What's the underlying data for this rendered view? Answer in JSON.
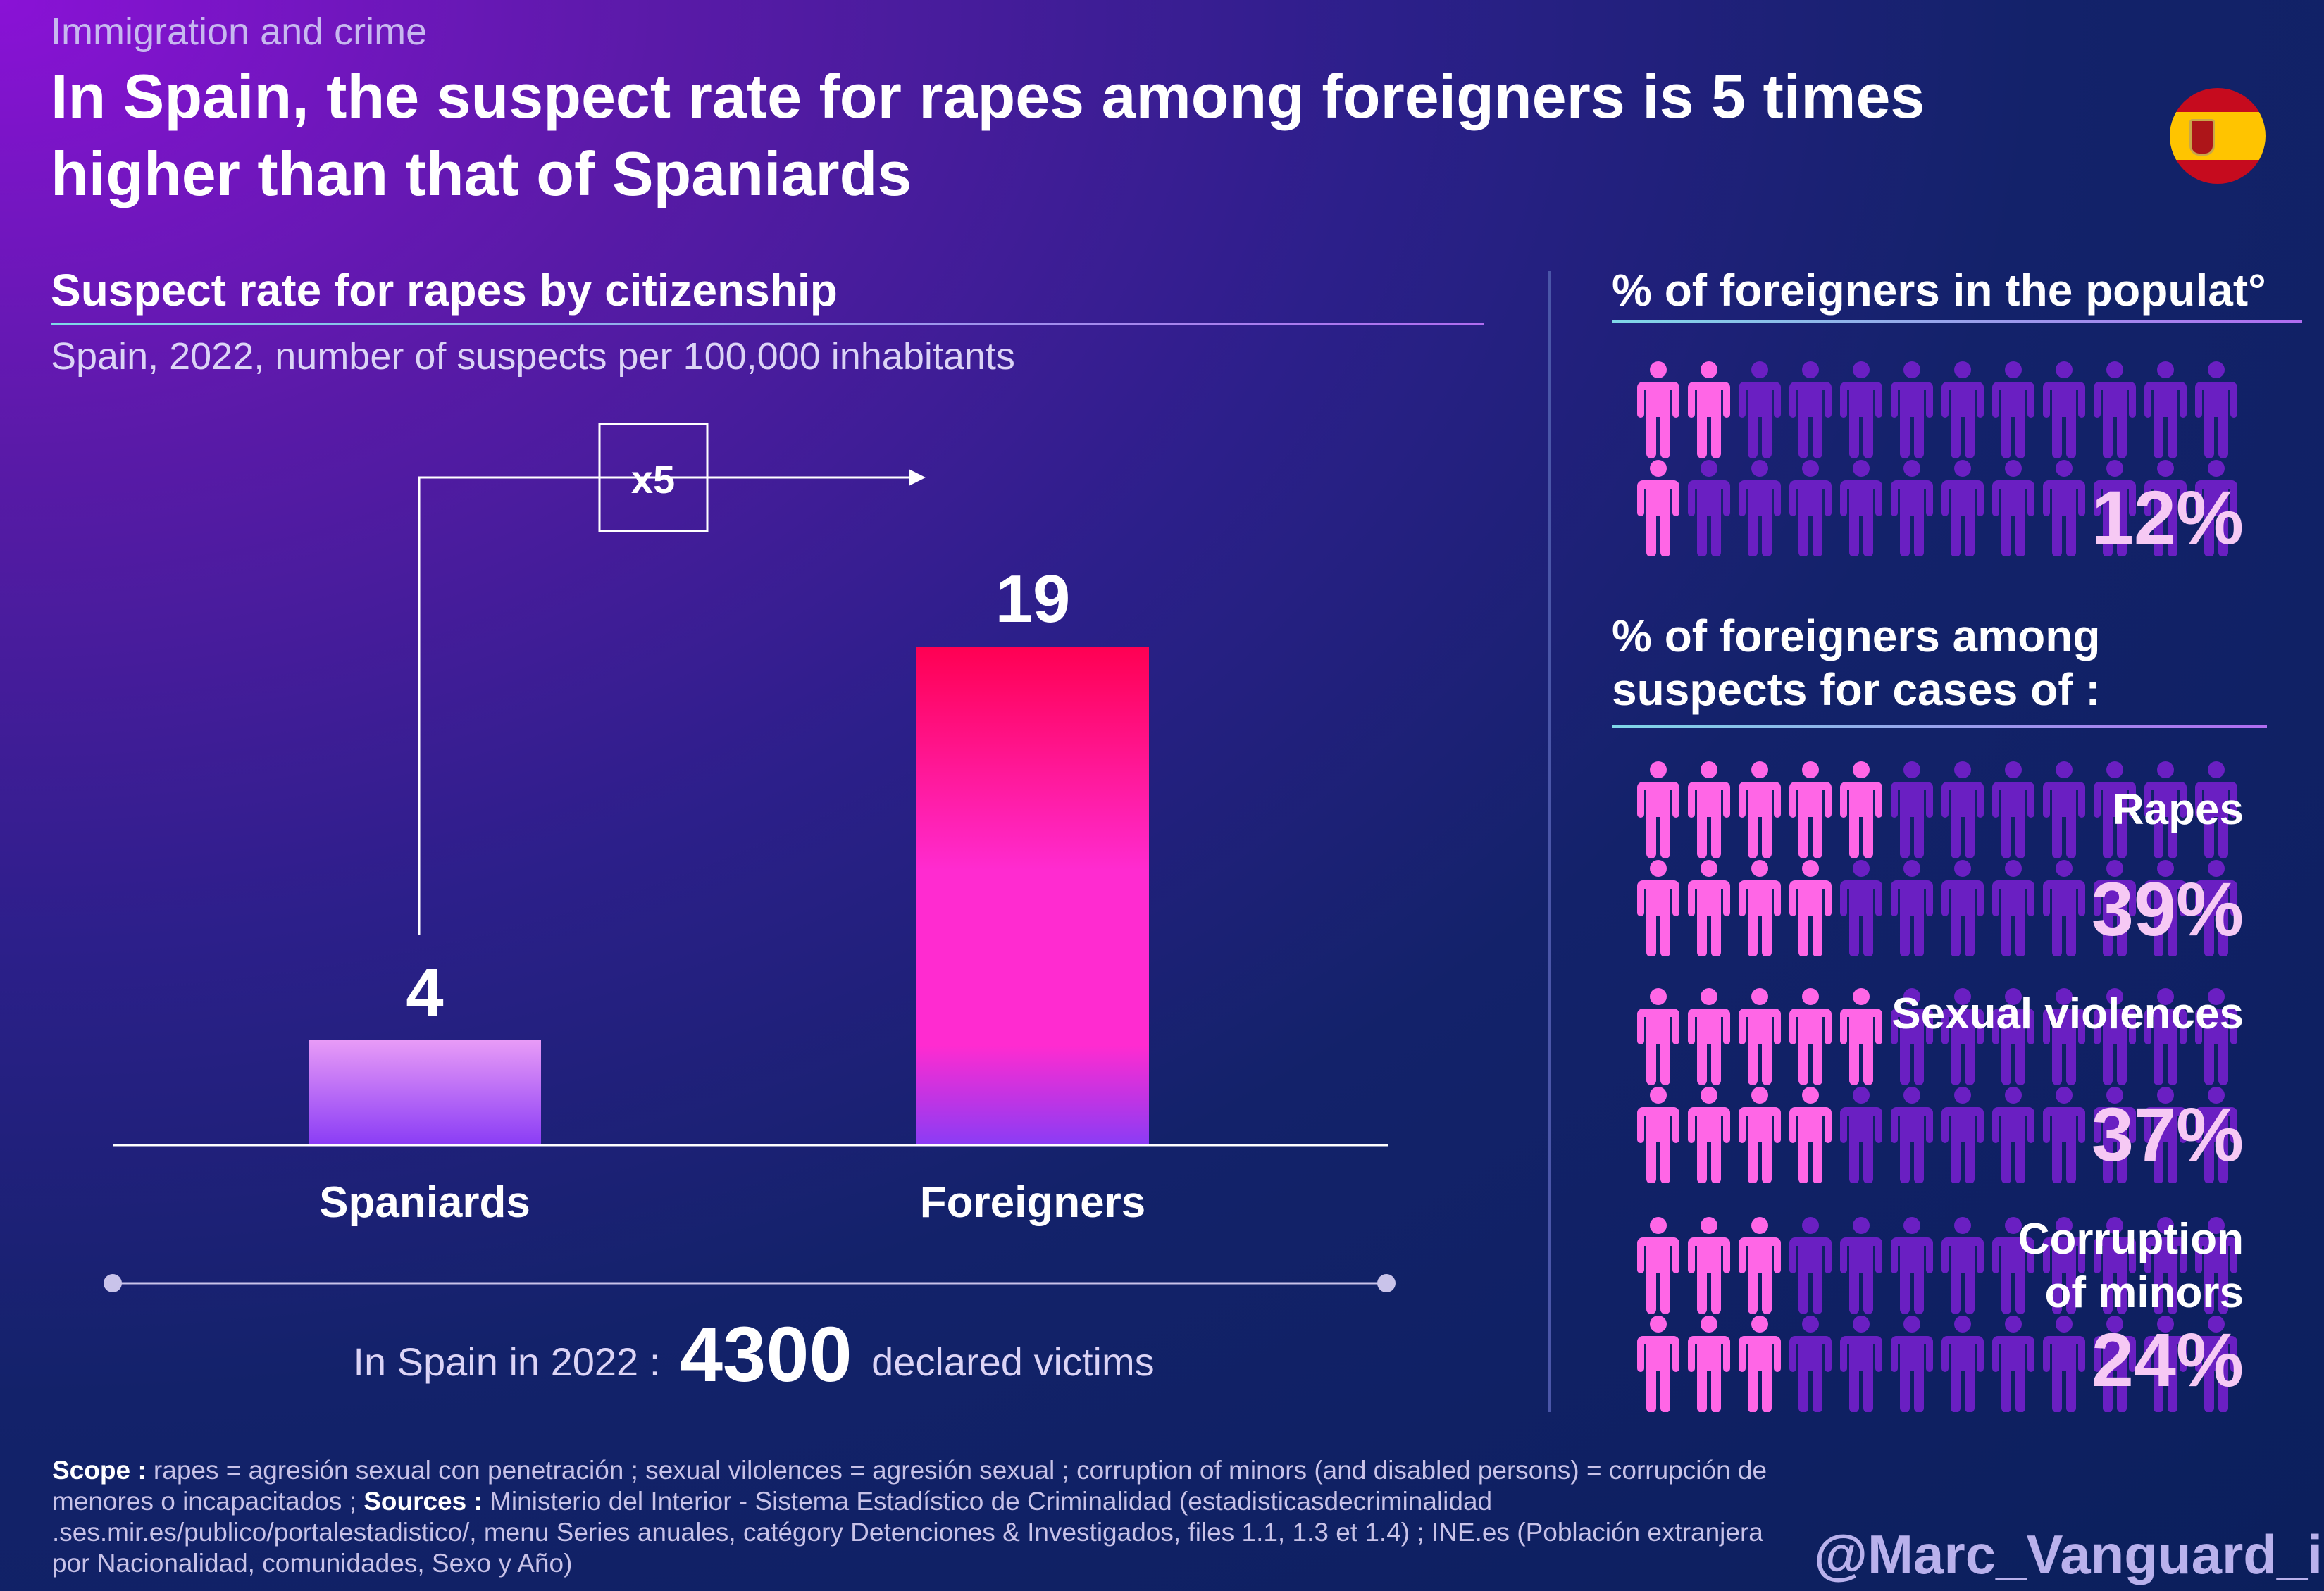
{
  "header": {
    "kicker": "Immigration and crime",
    "title_line1": "In Spain, the suspect rate for rapes among foreigners is 5 times",
    "title_line2": "higher than that of Spaniards",
    "flag": "spain-flag-icon"
  },
  "chart_data": {
    "type": "bar",
    "title": "Suspect rate for rapes by citizenship",
    "subtitle": "Spain, 2022, number of suspects per 100,000 inhabitants",
    "categories": [
      "Spaniards",
      "Foreigners"
    ],
    "values": [
      4,
      19
    ],
    "value_labels": [
      "4",
      "19"
    ],
    "annotation": "x5",
    "ylim": [
      0,
      20
    ],
    "grid": false,
    "colors": {
      "spaniards_top": "#e89bf7",
      "spaniards_bottom": "#8a3cf5",
      "foreigners_top": "#ff0052",
      "foreigners_mid": "#ff2bd0",
      "foreigners_bottom": "#8a3cf5"
    }
  },
  "victims": {
    "prefix": "In Spain in 2022 :",
    "number": "4300",
    "suffix": "declared victims"
  },
  "population": {
    "heading": "% of foreigners in the populat°",
    "percent_label": "12%",
    "fraction": 0.12,
    "grid": [
      2,
      1
    ],
    "icon": "person-icon"
  },
  "suspects": {
    "heading_line1": "% of foreigners among",
    "heading_line2": "suspects for cases of :",
    "items": [
      {
        "label_line1": "Rapes",
        "label_line2": "",
        "percent_label": "39%",
        "fraction": 0.39,
        "row1": 5,
        "row2": 4
      },
      {
        "label_line1": "Sexual violences",
        "label_line2": "",
        "percent_label": "37%",
        "fraction": 0.37,
        "row1": 5,
        "row2": 4
      },
      {
        "label_line1": "Corruption",
        "label_line2": "of minors",
        "percent_label": "24%",
        "fraction": 0.24,
        "row1": 3,
        "row2": 3
      }
    ]
  },
  "colors": {
    "person_highlight_top": "#ff66e6",
    "person_highlight_bottom": "#c43cf0",
    "person_dim": "#6a1fc2",
    "accent": "#f6c9f4"
  },
  "footer": {
    "scope_label": "Scope :",
    "scope_text": "rapes = agresión sexual con penetración ; sexual vilolences = agresión sexual ; corruption of minors (and disabled persons) = corrupción de menores o incapacitados ;",
    "sources_label": "Sources :",
    "sources_text": "Ministerio del Interior - Sistema Estadístico de Criminalidad (estadisticasdecriminalidad .ses.mir.es/publico/portalestadistico/, menu Series anuales, catégory Detenciones & Investigados, files 1.1, 1.3 et 1.4) ; INE.es (Población extranjera por Nacionalidad, comunidades, Sexo y Año)",
    "handle": "@Marc_Vanguard_i"
  }
}
